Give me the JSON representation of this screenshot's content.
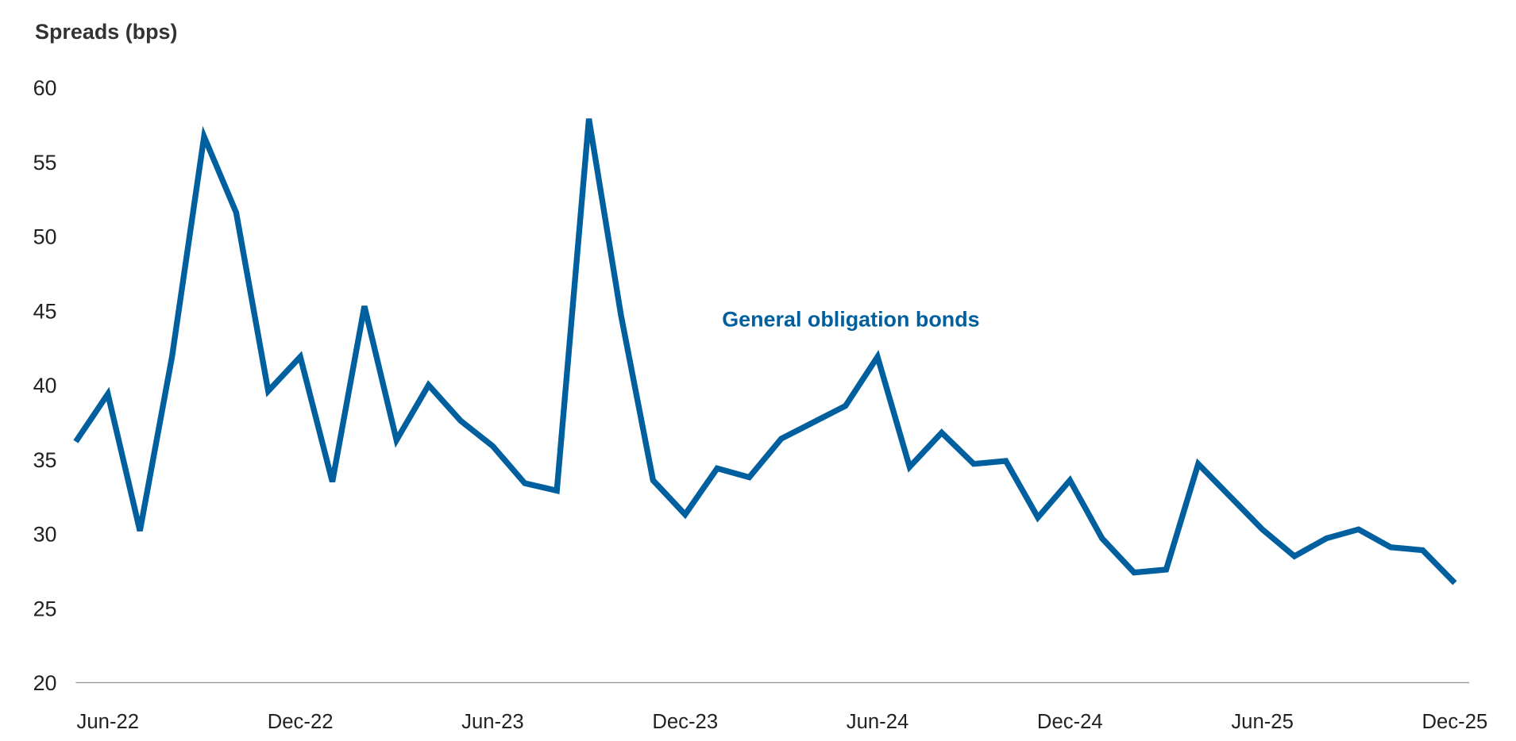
{
  "chart_data": {
    "type": "line",
    "title": "",
    "ylabel": "Spreads (bps)",
    "xlabel": "",
    "ylim": [
      20,
      60
    ],
    "yticks": [
      20,
      25,
      30,
      35,
      40,
      45,
      50,
      55,
      60
    ],
    "grid": false,
    "x": [
      "May-22",
      "Jun-22",
      "Jul-22",
      "Aug-22",
      "Sep-22",
      "Oct-22",
      "Nov-22",
      "Dec-22",
      "Jan-23",
      "Feb-23",
      "Mar-23",
      "Apr-23",
      "May-23",
      "Jun-23",
      "Jul-23",
      "Aug-23",
      "Sep-23",
      "Oct-23",
      "Nov-23",
      "Dec-23",
      "Jan-24",
      "Feb-24",
      "Mar-24",
      "Apr-24",
      "May-24",
      "Jun-24",
      "Jul-24",
      "Aug-24",
      "Sep-24",
      "Oct-24",
      "Nov-24",
      "Dec-24",
      "Jan-25",
      "Feb-25",
      "Mar-25",
      "Apr-25",
      "May-25",
      "Jun-25",
      "Jul-25",
      "Aug-25",
      "Sep-25",
      "Oct-25",
      "Nov-25",
      "Dec-25"
    ],
    "xticks": [
      "Jun-22",
      "Dec-22",
      "Jun-23",
      "Dec-23",
      "Jun-24",
      "Dec-24",
      "Jun-25",
      "Dec-25"
    ],
    "series": [
      {
        "name": "General obligation bonds",
        "color": "#005f9e",
        "values": [
          36.2,
          39.4,
          30.2,
          41.9,
          56.7,
          51.6,
          39.6,
          41.9,
          33.5,
          45.3,
          36.3,
          40.0,
          37.6,
          35.9,
          33.4,
          32.9,
          57.9,
          44.7,
          33.6,
          31.3,
          34.4,
          33.8,
          36.4,
          37.5,
          38.6,
          41.9,
          34.5,
          36.8,
          34.7,
          34.9,
          31.1,
          33.6,
          29.7,
          27.4,
          27.6,
          34.7,
          32.5,
          30.3,
          28.5,
          29.7,
          30.3,
          29.1,
          28.9,
          26.7
        ]
      }
    ]
  }
}
